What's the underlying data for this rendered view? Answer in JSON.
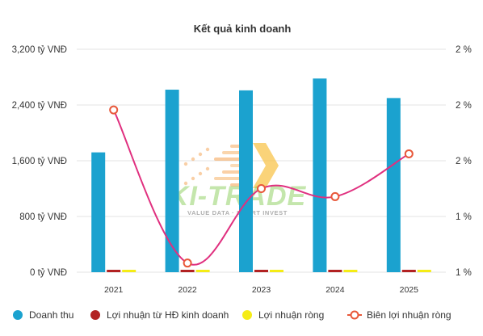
{
  "chart_data": {
    "type": "bar",
    "title": "Kết quả kinh doanh",
    "categories": [
      "2021",
      "2022",
      "2023",
      "2024",
      "2025"
    ],
    "y_left": {
      "ticks": [
        "3,200 tỷ VNĐ",
        "2,400 tỷ VNĐ",
        "1,600 tỷ VNĐ",
        "800 tỷ VNĐ",
        "0 tỷ VNĐ"
      ],
      "range": [
        0,
        3200
      ]
    },
    "y_right": {
      "ticks": [
        "2 %",
        "2 %",
        "2 %",
        "1 %",
        "1 %"
      ]
    },
    "series": [
      {
        "name": "Doanh thu",
        "kind": "bar",
        "color": "#1ba2cf",
        "values": [
          1720,
          2620,
          2610,
          2780,
          2500
        ]
      },
      {
        "name": "Lợi nhuận từ HĐ kinh doanh",
        "kind": "bar",
        "color": "#b22222",
        "values": [
          30,
          10,
          25,
          25,
          30
        ]
      },
      {
        "name": "Lợi nhuận ròng",
        "kind": "bar",
        "color": "#f5ec16",
        "values": [
          25,
          5,
          20,
          20,
          25
        ]
      },
      {
        "name": "Biên lợi nhuận ròng",
        "kind": "line",
        "color": "#e0307f",
        "marker_color": "#e8583a",
        "rel_values": [
          0.728,
          0.041,
          0.375,
          0.339,
          0.531
        ]
      }
    ],
    "grid": true,
    "legend_position": "bottom"
  },
  "watermark": {
    "text": "KI-TRADE",
    "tagline": "VALUE DATA · SMART INVEST"
  }
}
